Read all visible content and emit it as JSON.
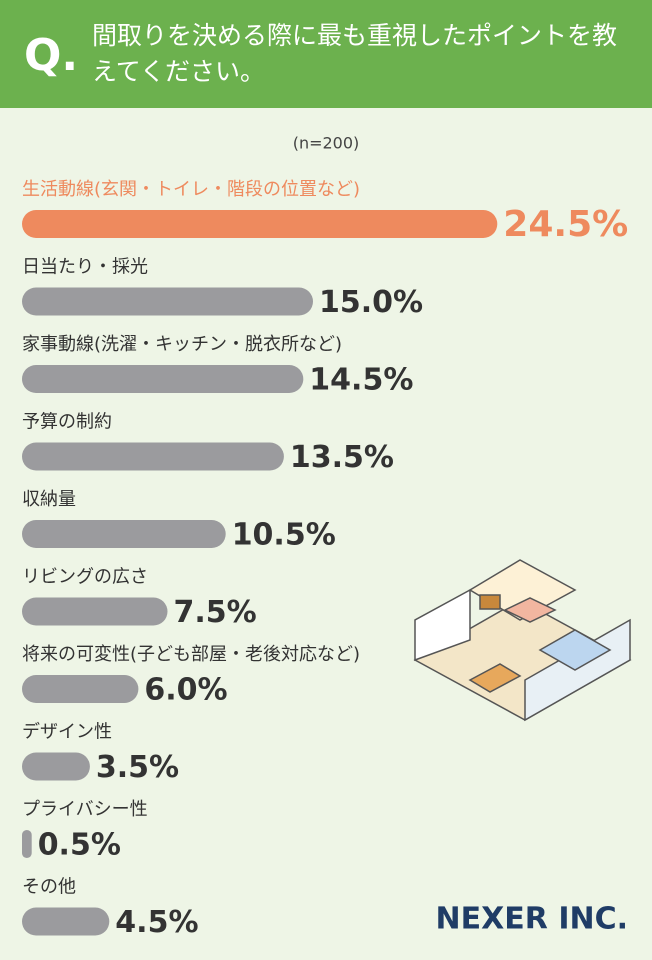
{
  "chart_data": {
    "type": "hbar",
    "question_mark": "Q.",
    "title": "間取りを決める際に最も重視したポイントを教えてください。",
    "subtitle": "(n=200)",
    "categories": [
      "生活動線(玄関・トイレ・階段の位置など)",
      "日当たり・採光",
      "家事動線(洗濯・キッチン・脱衣所など)",
      "予算の制約",
      "収納量",
      "リビングの広さ",
      "将来の可変性(子ども部屋・老後対応など)",
      "デザイン性",
      "プライバシー性",
      "その他"
    ],
    "values": [
      24.5,
      15.0,
      14.5,
      13.5,
      10.5,
      7.5,
      6.0,
      3.5,
      0.5,
      4.5
    ],
    "value_labels": [
      "24.5%",
      "15.0%",
      "14.5%",
      "13.5%",
      "10.5%",
      "7.5%",
      "6.0%",
      "3.5%",
      "0.5%",
      "4.5%"
    ],
    "color": "#9b9b9e",
    "highlight_color": "#ee8a5e",
    "highlight_index": 0,
    "brand": "NEXER INC."
  }
}
